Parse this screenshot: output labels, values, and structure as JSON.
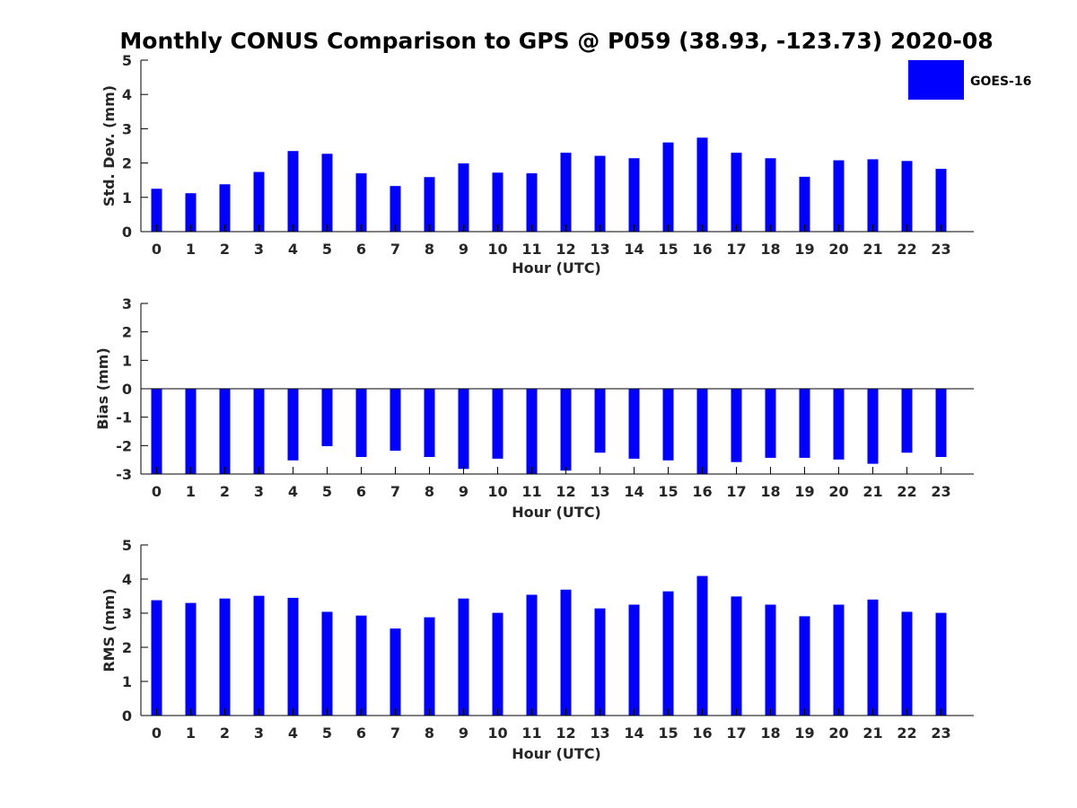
{
  "figure": {
    "title": "Monthly CONUS Comparison to GPS @ P059 (38.93, -123.73) 2020-08",
    "legend": {
      "label": "GOES-16",
      "color": "#0000FF",
      "placement": "top-right"
    }
  },
  "chart_data": [
    {
      "type": "bar",
      "xlabel": "Hour (UTC)",
      "ylabel": "Std. Dev. (mm)",
      "ylim": [
        0,
        5
      ],
      "yticks": [
        0,
        1,
        2,
        3,
        4,
        5
      ],
      "categories": [
        "0",
        "1",
        "2",
        "3",
        "4",
        "5",
        "6",
        "7",
        "8",
        "9",
        "10",
        "11",
        "12",
        "13",
        "14",
        "15",
        "16",
        "17",
        "18",
        "19",
        "20",
        "21",
        "22",
        "23"
      ],
      "series": [
        {
          "name": "GOES-16",
          "color": "#0000FF",
          "values": [
            1.25,
            1.12,
            1.38,
            1.74,
            2.35,
            2.27,
            1.7,
            1.33,
            1.59,
            1.99,
            1.72,
            1.7,
            2.3,
            2.21,
            2.14,
            2.6,
            2.74,
            2.3,
            2.14,
            1.6,
            2.08,
            2.11,
            2.06,
            1.83
          ]
        }
      ]
    },
    {
      "type": "bar",
      "xlabel": "Hour (UTC)",
      "ylabel": "Bias (mm)",
      "ylim": [
        -3,
        3
      ],
      "yticks": [
        -3,
        -2,
        -1,
        0,
        1,
        2,
        3
      ],
      "categories": [
        "0",
        "1",
        "2",
        "3",
        "4",
        "5",
        "6",
        "7",
        "8",
        "9",
        "10",
        "11",
        "12",
        "13",
        "14",
        "15",
        "16",
        "17",
        "18",
        "19",
        "20",
        "21",
        "22",
        "23"
      ],
      "series": [
        {
          "name": "GOES-16",
          "color": "#0000FF",
          "values": [
            -3.0,
            -3.0,
            -3.0,
            -3.0,
            -2.52,
            -2.02,
            -2.4,
            -2.18,
            -2.4,
            -2.82,
            -2.46,
            -3.0,
            -2.88,
            -2.25,
            -2.46,
            -2.52,
            -3.0,
            -2.58,
            -2.43,
            -2.43,
            -2.49,
            -2.64,
            -2.25,
            -2.4
          ]
        }
      ]
    },
    {
      "type": "bar",
      "xlabel": "Hour (UTC)",
      "ylabel": "RMS (mm)",
      "ylim": [
        0,
        5
      ],
      "yticks": [
        0,
        1,
        2,
        3,
        4,
        5
      ],
      "categories": [
        "0",
        "1",
        "2",
        "3",
        "4",
        "5",
        "6",
        "7",
        "8",
        "9",
        "10",
        "11",
        "12",
        "13",
        "14",
        "15",
        "16",
        "17",
        "18",
        "19",
        "20",
        "21",
        "22",
        "23"
      ],
      "series": [
        {
          "name": "GOES-16",
          "color": "#0000FF",
          "values": [
            3.38,
            3.3,
            3.43,
            3.51,
            3.45,
            3.04,
            2.93,
            2.55,
            2.88,
            3.43,
            3.01,
            3.54,
            3.69,
            3.14,
            3.25,
            3.64,
            4.09,
            3.49,
            3.25,
            2.91,
            3.25,
            3.4,
            3.04,
            3.01
          ]
        }
      ]
    }
  ]
}
